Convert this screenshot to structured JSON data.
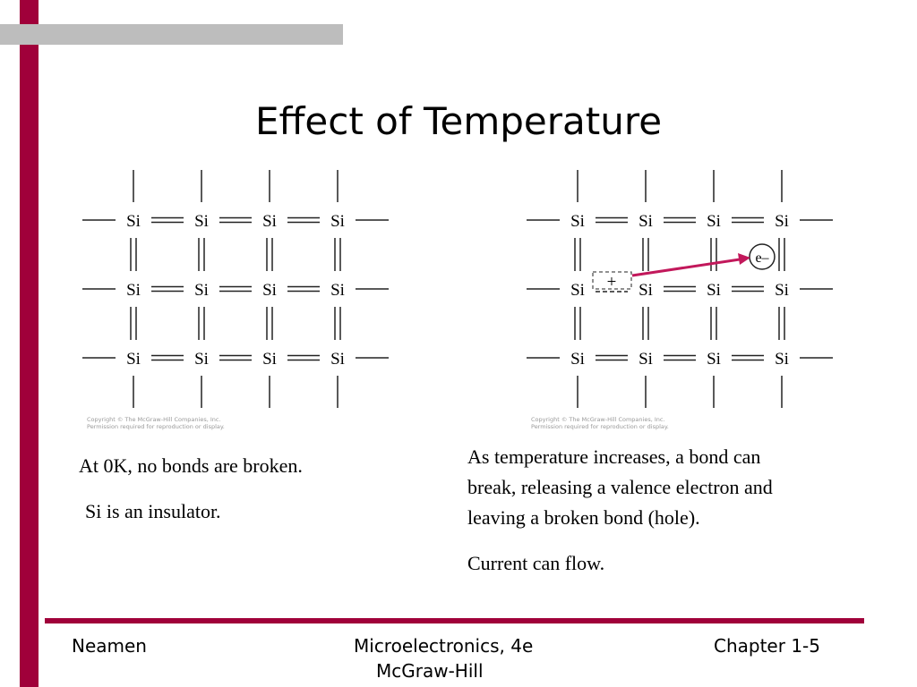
{
  "title": "Effect of Temperature",
  "lattice_left": {
    "rows": [
      [
        "Si",
        "Si",
        "Si",
        "Si"
      ],
      [
        "Si",
        "Si",
        "Si",
        "Si"
      ],
      [
        "Si",
        "Si",
        "Si",
        "Si"
      ]
    ],
    "copyright": [
      "Copyright © The McGraw-Hill Companies, Inc.",
      "Permission required for reproduction or display."
    ]
  },
  "lattice_right": {
    "rows": [
      [
        "Si",
        "Si",
        "Si",
        "Si"
      ],
      [
        "Si",
        "Si",
        "Si",
        "Si"
      ],
      [
        "Si",
        "Si",
        "Si",
        "Si"
      ]
    ],
    "hole": "+",
    "electron": "e–",
    "copyright": [
      "Copyright © The McGraw-Hill Companies, Inc.",
      "Permission required for reproduction or display."
    ]
  },
  "left_text": [
    "At 0K, no bonds are broken.",
    "Si is an insulator."
  ],
  "right_text": {
    "lines": [
      "As temperature increases, a bond can",
      "break, releasing a valence electron and",
      "leaving a broken bond (hole)."
    ],
    "note": "Current can flow."
  },
  "footer": {
    "author": "Neamen",
    "book": "Microelectronics, 4e",
    "publisher": "McGraw-Hill",
    "chapter": "Chapter 1-5"
  }
}
